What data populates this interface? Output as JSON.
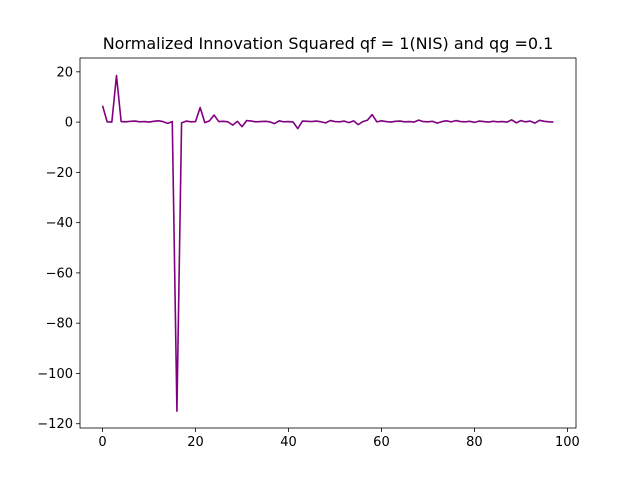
{
  "chart_data": {
    "type": "line",
    "title": "Normalized Innovation Squared qf = 1(NIS) and qg =0.1",
    "xlabel": "",
    "ylabel": "",
    "xlim": [
      -4.85,
      101.85
    ],
    "ylim": [
      -121.7,
      25.5
    ],
    "x_ticks": [
      0,
      20,
      40,
      60,
      80,
      100
    ],
    "y_ticks": [
      20,
      0,
      -20,
      -40,
      -60,
      -80,
      -100,
      -120
    ],
    "x_tick_labels": [
      "0",
      "20",
      "40",
      "60",
      "80",
      "100"
    ],
    "y_tick_labels": [
      "20",
      "0",
      "−20",
      "−40",
      "−60",
      "−80",
      "−100",
      "−120"
    ],
    "grid": false,
    "legend": "none",
    "series": [
      {
        "color": "#800080",
        "x": [
          0,
          1,
          2,
          3,
          4,
          5,
          6,
          7,
          8,
          9,
          10,
          11,
          12,
          13,
          14,
          15,
          16,
          17,
          18,
          19,
          20,
          21,
          22,
          23,
          24,
          25,
          26,
          27,
          28,
          29,
          30,
          31,
          32,
          33,
          34,
          35,
          36,
          37,
          38,
          39,
          40,
          41,
          42,
          43,
          44,
          45,
          46,
          47,
          48,
          49,
          50,
          51,
          52,
          53,
          54,
          55,
          56,
          57,
          58,
          59,
          60,
          61,
          62,
          63,
          64,
          65,
          66,
          67,
          68,
          69,
          70,
          71,
          72,
          73,
          74,
          75,
          76,
          77,
          78,
          79,
          80,
          81,
          82,
          83,
          84,
          85,
          86,
          87,
          88,
          89,
          90,
          91,
          92,
          93,
          94,
          95,
          96,
          97
        ],
        "values": [
          6.5,
          0.1,
          0.0,
          18.5,
          0.2,
          0.1,
          0.3,
          0.4,
          0.1,
          0.2,
          0.0,
          0.3,
          0.5,
          0.2,
          -0.5,
          0.2,
          -115.0,
          -0.3,
          0.4,
          0.1,
          0.2,
          5.8,
          -0.2,
          0.5,
          2.8,
          0.2,
          0.3,
          0.1,
          -1.2,
          0.3,
          -1.8,
          0.6,
          0.4,
          0.1,
          0.2,
          0.3,
          0.1,
          -0.6,
          0.5,
          0.1,
          0.2,
          0.0,
          -2.6,
          0.4,
          0.3,
          0.2,
          0.4,
          0.1,
          -0.3,
          0.6,
          0.2,
          0.1,
          0.4,
          -0.2,
          0.5,
          -1.0,
          0.2,
          0.8,
          3.0,
          0.1,
          0.5,
          0.2,
          0.0,
          0.3,
          0.4,
          0.1,
          0.2,
          0.0,
          0.8,
          0.2,
          0.1,
          0.3,
          -0.4,
          0.2,
          0.5,
          0.1,
          0.6,
          0.2,
          0.1,
          0.3,
          -0.1,
          0.4,
          0.2,
          0.0,
          0.3,
          0.1,
          0.2,
          0.0,
          0.9,
          -0.3,
          0.6,
          0.1,
          0.4,
          -0.4,
          0.7,
          0.3,
          0.1,
          0.0
        ]
      }
    ]
  }
}
